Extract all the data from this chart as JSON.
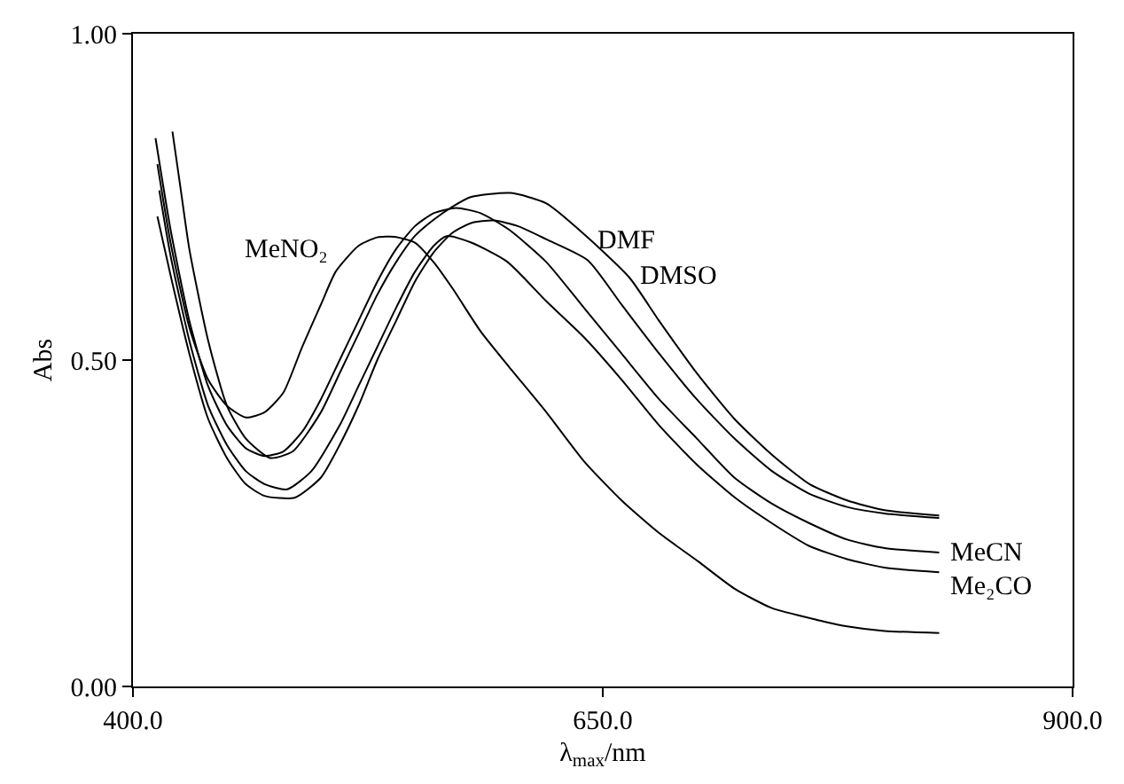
{
  "chart_data": {
    "type": "line",
    "xlabel": "λ$_{max}$/nm",
    "ylabel": "Abs",
    "xlim": [
      400,
      900
    ],
    "xticks": [
      {
        "value": 400,
        "label": "400.0"
      },
      {
        "value": 650,
        "label": "650.0"
      },
      {
        "value": 900,
        "label": "900.0"
      }
    ],
    "ylim": [
      0,
      1
    ],
    "yticks": [
      {
        "value": 0,
        "label": "0.00"
      },
      {
        "value": 0.5,
        "label": "0.50"
      },
      {
        "value": 1,
        "label": "1.00"
      }
    ],
    "grid": false,
    "legend": false,
    "marker": "none",
    "line_style": "solid",
    "series": [
      {
        "name": "MeNO₂",
        "color": "#000000",
        "x": [
          413,
          420,
          430,
          440,
          450,
          460,
          470,
          480,
          490,
          500,
          508,
          520,
          530,
          539,
          550,
          560,
          570,
          585,
          600,
          620,
          640,
          660,
          680,
          701,
          720,
          740,
          764,
          780,
          800,
          829
        ],
        "values": [
          0.8,
          0.68,
          0.55,
          0.47,
          0.43,
          0.412,
          0.42,
          0.45,
          0.52,
          0.585,
          0.636,
          0.675,
          0.688,
          0.689,
          0.68,
          0.65,
          0.61,
          0.544,
          0.49,
          0.42,
          0.345,
          0.285,
          0.235,
          0.191,
          0.15,
          0.12,
          0.102,
          0.092,
          0.085,
          0.082
        ]
      },
      {
        "name": "MeCN",
        "color": "#000000",
        "x": [
          412,
          420,
          430,
          440,
          450,
          460,
          470,
          480,
          490,
          500,
          510,
          520,
          530,
          540,
          550,
          560,
          572,
          585,
          600,
          620,
          640,
          660,
          680,
          700,
          720,
          740,
          760,
          780,
          800,
          829
        ],
        "values": [
          0.84,
          0.7,
          0.56,
          0.46,
          0.4,
          0.365,
          0.353,
          0.36,
          0.39,
          0.44,
          0.5,
          0.56,
          0.62,
          0.67,
          0.705,
          0.725,
          0.733,
          0.725,
          0.7,
          0.65,
          0.58,
          0.51,
          0.44,
          0.38,
          0.32,
          0.28,
          0.25,
          0.225,
          0.212,
          0.205
        ]
      },
      {
        "name": "Me₂CO",
        "color": "#000000",
        "x": [
          414,
          420,
          430,
          440,
          450,
          460,
          470,
          482,
          495,
          510,
          520,
          530,
          540,
          550,
          560,
          567,
          580,
          599,
          620,
          640,
          660,
          680,
          700,
          720,
          740,
          760,
          780,
          800,
          829
        ],
        "values": [
          0.76,
          0.66,
          0.53,
          0.43,
          0.37,
          0.33,
          0.31,
          0.302,
          0.33,
          0.4,
          0.46,
          0.52,
          0.58,
          0.635,
          0.675,
          0.69,
          0.68,
          0.651,
          0.59,
          0.535,
          0.47,
          0.4,
          0.34,
          0.29,
          0.25,
          0.215,
          0.195,
          0.182,
          0.175
        ]
      },
      {
        "name": "DMF",
        "color": "#000000",
        "x": [
          413,
          420,
          430,
          440,
          450,
          460,
          470,
          486,
          500,
          510,
          520,
          530,
          540,
          550,
          560,
          570,
          580,
          592,
          605,
          620,
          642,
          660,
          680,
          700,
          720,
          740,
          760,
          780,
          800,
          829
        ],
        "values": [
          0.72,
          0.63,
          0.51,
          0.41,
          0.35,
          0.31,
          0.292,
          0.289,
          0.32,
          0.37,
          0.43,
          0.5,
          0.56,
          0.62,
          0.665,
          0.695,
          0.71,
          0.714,
          0.705,
          0.685,
          0.653,
          0.585,
          0.51,
          0.44,
          0.38,
          0.33,
          0.295,
          0.275,
          0.265,
          0.258
        ]
      },
      {
        "name": "DMSO",
        "color": "#000000",
        "x": [
          421,
          425,
          430,
          440,
          450,
          460,
          473,
          485,
          500,
          510,
          520,
          530,
          540,
          550,
          560,
          570,
          580,
          601,
          620,
          640,
          664,
          680,
          700,
          720,
          740,
          760,
          780,
          800,
          829
        ],
        "values": [
          0.85,
          0.77,
          0.67,
          0.53,
          0.43,
          0.38,
          0.35,
          0.36,
          0.42,
          0.48,
          0.54,
          0.6,
          0.65,
          0.69,
          0.715,
          0.735,
          0.75,
          0.756,
          0.74,
          0.693,
          0.627,
          0.56,
          0.48,
          0.41,
          0.355,
          0.31,
          0.285,
          0.27,
          0.262
        ]
      }
    ]
  }
}
